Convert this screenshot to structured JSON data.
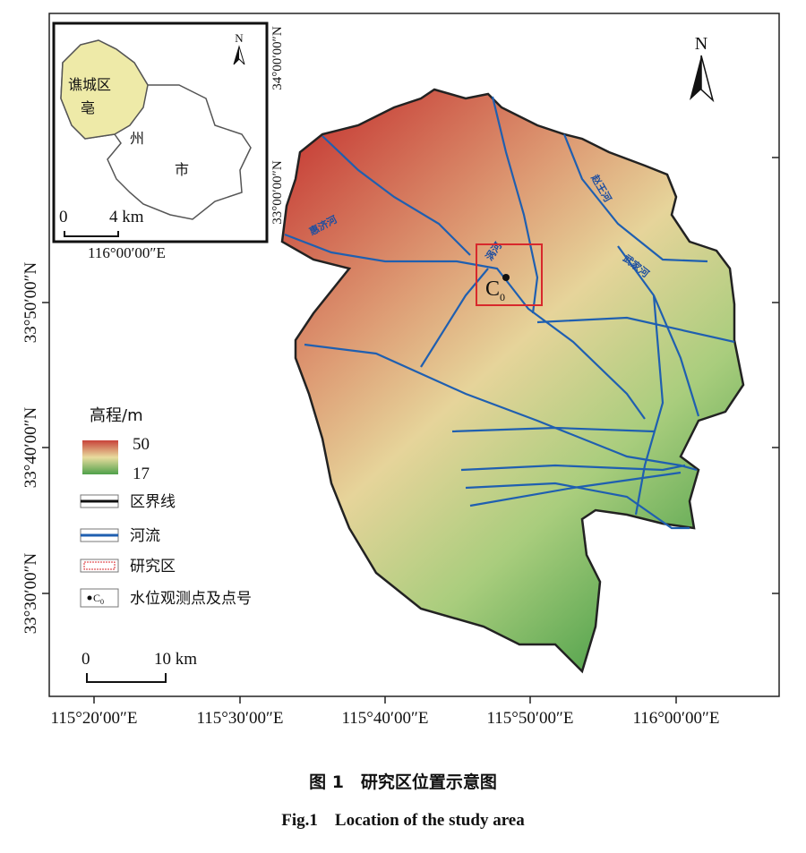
{
  "map": {
    "north_label": "N",
    "longitude_labels": [
      "115°20′00″E",
      "115°30′00″E",
      "115°40′00″E",
      "115°50′00″E",
      "116°00′00″E"
    ],
    "latitude_labels": [
      "33°50′00″N",
      "33°40′00″N",
      "33°30′00″N"
    ],
    "rivers": [
      "惠济河",
      "涡河",
      "武家河",
      "赵王河"
    ],
    "station": {
      "label": "C",
      "subscript": "0"
    },
    "scale_bar": {
      "start": "0",
      "end": "10 km"
    },
    "legend": {
      "title": "高程/m",
      "elevation_max": 50,
      "elevation_min": 17,
      "items": [
        "区界线",
        "河流",
        "研究区",
        "水位观测点及点号"
      ],
      "station_symbol": {
        "label": "C",
        "subscript": "0"
      }
    }
  },
  "inset": {
    "north_label": "N",
    "labels": [
      "谯城区",
      "亳",
      "州",
      "市"
    ],
    "scale_bar": {
      "start": "0",
      "end": "4 km"
    },
    "longitude_label": "116°00′00″E",
    "latitude_labels": [
      "34°00′00″N",
      "33°00′00″N"
    ]
  },
  "caption": {
    "chinese": "图 1　研究区位置示意图",
    "english": "Fig.1　Location of the study area"
  }
}
